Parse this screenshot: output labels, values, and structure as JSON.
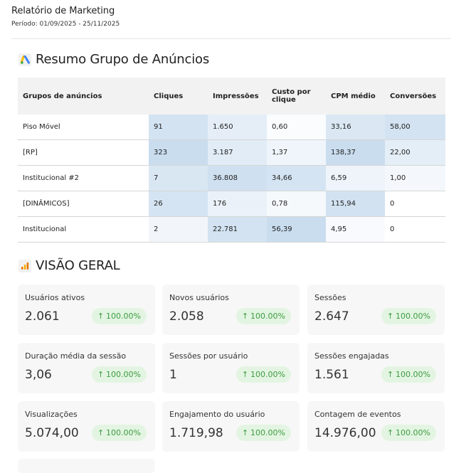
{
  "header": {
    "title": "Relatório de Marketing",
    "period": "Período: 01/09/2025 - 25/11/2025"
  },
  "ads_section": {
    "title": "Resumo Grupo de Anúncios",
    "icon": "google-ads-icon",
    "columns": [
      "Grupos de anúncios",
      "Cliques",
      "Impressões",
      "Custo por clique",
      "CPM médio",
      "Conversões"
    ],
    "rows": [
      [
        "Piso Móvel",
        "91",
        "1.650",
        "0,60",
        "33,16",
        "58,00"
      ],
      [
        "[RP]",
        "323",
        "3.187",
        "1,37",
        "138,37",
        "22,00"
      ],
      [
        "Institucional #2",
        "7",
        "36.808",
        "34,66",
        "6,59",
        "1,00"
      ],
      [
        "[DINÂMICOS]",
        "26",
        "176",
        "0,78",
        "115,94",
        "0"
      ],
      [
        "Institucional",
        "2",
        "22.781",
        "56,39",
        "4,95",
        "0"
      ]
    ],
    "heat_colors": [
      [
        "",
        "#d3e3f1",
        "#e5eef7",
        "#fafcfe",
        "#dbe8f4",
        "#d3e3f1"
      ],
      [
        "",
        "#c9ddef",
        "#e1ecf6",
        "#f0f5fb",
        "#c9ddef",
        "#e4eef7"
      ],
      [
        "",
        "#d9e7f3",
        "#cfe0f0",
        "#d5e4f2",
        "#eef4fa",
        "#f4f8fc"
      ],
      [
        "",
        "#d5e4f2",
        "#eaf1f8",
        "#f5f9fc",
        "#d2e2f1",
        "#ffffff"
      ],
      [
        "",
        "#f2f6fb",
        "#d3e3f1",
        "#c9ddef",
        "#f8fafd",
        "#ffffff"
      ]
    ]
  },
  "overview": {
    "title": "VISÃO GERAL",
    "icon": "google-analytics-icon",
    "accent_color": "#3d9b41",
    "cards": [
      {
        "label": "Usuários ativos",
        "value": "2.061",
        "change": "100.00%"
      },
      {
        "label": "Novos usuários",
        "value": "2.058",
        "change": "100.00%"
      },
      {
        "label": "Sessões",
        "value": "2.647",
        "change": "100.00%"
      },
      {
        "label": "Duração média da sessão",
        "value": "3,06",
        "change": "100.00%"
      },
      {
        "label": "Sessões por usuário",
        "value": "1",
        "change": "100.00%"
      },
      {
        "label": "Sessões engajadas",
        "value": "1.561",
        "change": "100.00%"
      },
      {
        "label": "Visualizações",
        "value": "5.074,00",
        "change": "100.00%"
      },
      {
        "label": "Engajamento do usuário",
        "value": "1.719,98",
        "change": "100.00%"
      },
      {
        "label": "Contagem de eventos",
        "value": "14.976,00",
        "change": "100.00%"
      }
    ]
  }
}
